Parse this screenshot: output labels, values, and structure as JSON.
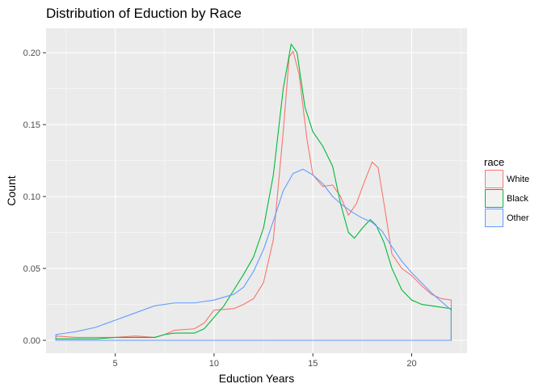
{
  "chart_data": {
    "type": "line",
    "subtype": "density",
    "title": "Distribution of Eduction by Race",
    "xlabel": "Eduction Years",
    "ylabel": "Count",
    "xlim": [
      1.5,
      22.8
    ],
    "ylim": [
      -0.009,
      0.217
    ],
    "x_ticks": [
      5,
      10,
      15,
      20
    ],
    "x_tick_labels": [
      "5",
      "10",
      "15",
      "20"
    ],
    "y_ticks": [
      0,
      0.05,
      0.1,
      0.15,
      0.2
    ],
    "y_tick_labels": [
      "0.00",
      "0.05",
      "0.10",
      "0.15",
      "0.20"
    ],
    "grid": true,
    "background": "#ebebeb",
    "legend": {
      "title": "race",
      "position": "right"
    },
    "x_range": [
      2,
      22
    ],
    "series": [
      {
        "name": "White",
        "color": "#f8766d",
        "points": [
          [
            2,
            0.003
          ],
          [
            3,
            0.002
          ],
          [
            4,
            0.002
          ],
          [
            5,
            0.002
          ],
          [
            6,
            0.003
          ],
          [
            7,
            0.002
          ],
          [
            7.5,
            0.004
          ],
          [
            8,
            0.007
          ],
          [
            9,
            0.008
          ],
          [
            9.5,
            0.012
          ],
          [
            10,
            0.021
          ],
          [
            11,
            0.022
          ],
          [
            11.5,
            0.025
          ],
          [
            12,
            0.029
          ],
          [
            12.5,
            0.04
          ],
          [
            13,
            0.07
          ],
          [
            13.5,
            0.145
          ],
          [
            13.8,
            0.197
          ],
          [
            14,
            0.201
          ],
          [
            14.3,
            0.185
          ],
          [
            14.7,
            0.14
          ],
          [
            15,
            0.115
          ],
          [
            15.5,
            0.107
          ],
          [
            16,
            0.108
          ],
          [
            16.4,
            0.1
          ],
          [
            16.8,
            0.087
          ],
          [
            17.2,
            0.095
          ],
          [
            17.6,
            0.11
          ],
          [
            18,
            0.124
          ],
          [
            18.3,
            0.12
          ],
          [
            18.6,
            0.095
          ],
          [
            19,
            0.06
          ],
          [
            19.5,
            0.05
          ],
          [
            20,
            0.045
          ],
          [
            20.5,
            0.038
          ],
          [
            21,
            0.032
          ],
          [
            21.5,
            0.029
          ],
          [
            22,
            0.028
          ]
        ]
      },
      {
        "name": "Black",
        "color": "#00ba38",
        "points": [
          [
            2,
            0.001
          ],
          [
            3,
            0.001
          ],
          [
            4,
            0.001
          ],
          [
            5,
            0.002
          ],
          [
            6,
            0.002
          ],
          [
            7,
            0.002
          ],
          [
            7.5,
            0.004
          ],
          [
            8,
            0.005
          ],
          [
            9,
            0.005
          ],
          [
            9.5,
            0.008
          ],
          [
            10,
            0.016
          ],
          [
            10.5,
            0.024
          ],
          [
            11,
            0.035
          ],
          [
            11.5,
            0.046
          ],
          [
            12,
            0.058
          ],
          [
            12.5,
            0.078
          ],
          [
            13,
            0.115
          ],
          [
            13.5,
            0.175
          ],
          [
            13.9,
            0.206
          ],
          [
            14.2,
            0.2
          ],
          [
            14.6,
            0.162
          ],
          [
            15,
            0.145
          ],
          [
            15.5,
            0.135
          ],
          [
            16,
            0.121
          ],
          [
            16.4,
            0.095
          ],
          [
            16.8,
            0.075
          ],
          [
            17.1,
            0.071
          ],
          [
            17.5,
            0.078
          ],
          [
            17.9,
            0.084
          ],
          [
            18.2,
            0.08
          ],
          [
            18.6,
            0.068
          ],
          [
            19,
            0.05
          ],
          [
            19.5,
            0.035
          ],
          [
            20,
            0.028
          ],
          [
            20.5,
            0.025
          ],
          [
            21,
            0.024
          ],
          [
            21.5,
            0.023
          ],
          [
            22,
            0.022
          ]
        ]
      },
      {
        "name": "Other",
        "color": "#619cff",
        "points": [
          [
            2,
            0.004
          ],
          [
            3,
            0.006
          ],
          [
            4,
            0.009
          ],
          [
            5,
            0.014
          ],
          [
            6,
            0.019
          ],
          [
            7,
            0.024
          ],
          [
            8,
            0.026
          ],
          [
            9,
            0.026
          ],
          [
            10,
            0.028
          ],
          [
            11,
            0.032
          ],
          [
            11.5,
            0.037
          ],
          [
            12,
            0.048
          ],
          [
            12.5,
            0.063
          ],
          [
            13,
            0.083
          ],
          [
            13.5,
            0.104
          ],
          [
            14,
            0.116
          ],
          [
            14.5,
            0.119
          ],
          [
            15,
            0.115
          ],
          [
            15.5,
            0.109
          ],
          [
            16,
            0.1
          ],
          [
            16.5,
            0.094
          ],
          [
            17,
            0.089
          ],
          [
            17.5,
            0.085
          ],
          [
            18,
            0.082
          ],
          [
            18.5,
            0.076
          ],
          [
            19,
            0.065
          ],
          [
            19.5,
            0.055
          ],
          [
            20,
            0.047
          ],
          [
            20.5,
            0.04
          ],
          [
            21,
            0.033
          ],
          [
            21.5,
            0.027
          ],
          [
            22,
            0.021
          ]
        ]
      }
    ]
  }
}
